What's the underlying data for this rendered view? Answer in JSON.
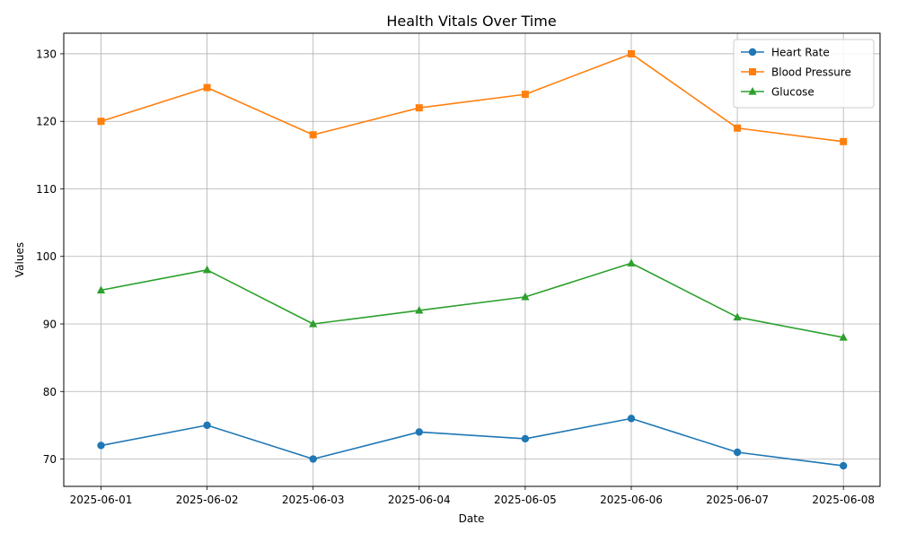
{
  "chart_data": {
    "type": "line",
    "title": "Health Vitals Over Time",
    "xlabel": "Date",
    "ylabel": "Values",
    "categories": [
      "2025-06-01",
      "2025-06-02",
      "2025-06-03",
      "2025-06-04",
      "2025-06-05",
      "2025-06-06",
      "2025-06-07",
      "2025-06-08"
    ],
    "series": [
      {
        "name": "Heart Rate",
        "color": "#1f77b4",
        "marker": "circle",
        "values": [
          72,
          75,
          70,
          74,
          73,
          76,
          71,
          69
        ]
      },
      {
        "name": "Blood Pressure",
        "color": "#ff7f0e",
        "marker": "square",
        "values": [
          120,
          125,
          118,
          122,
          124,
          130,
          119,
          117
        ]
      },
      {
        "name": "Glucose",
        "color": "#2ca02c",
        "marker": "triangle",
        "values": [
          95,
          98,
          90,
          92,
          94,
          99,
          91,
          88
        ]
      }
    ],
    "ylim": [
      65.95,
      133.05
    ],
    "yticks": [
      70,
      80,
      90,
      100,
      110,
      120,
      130
    ],
    "grid": true,
    "legend": "top-right"
  }
}
